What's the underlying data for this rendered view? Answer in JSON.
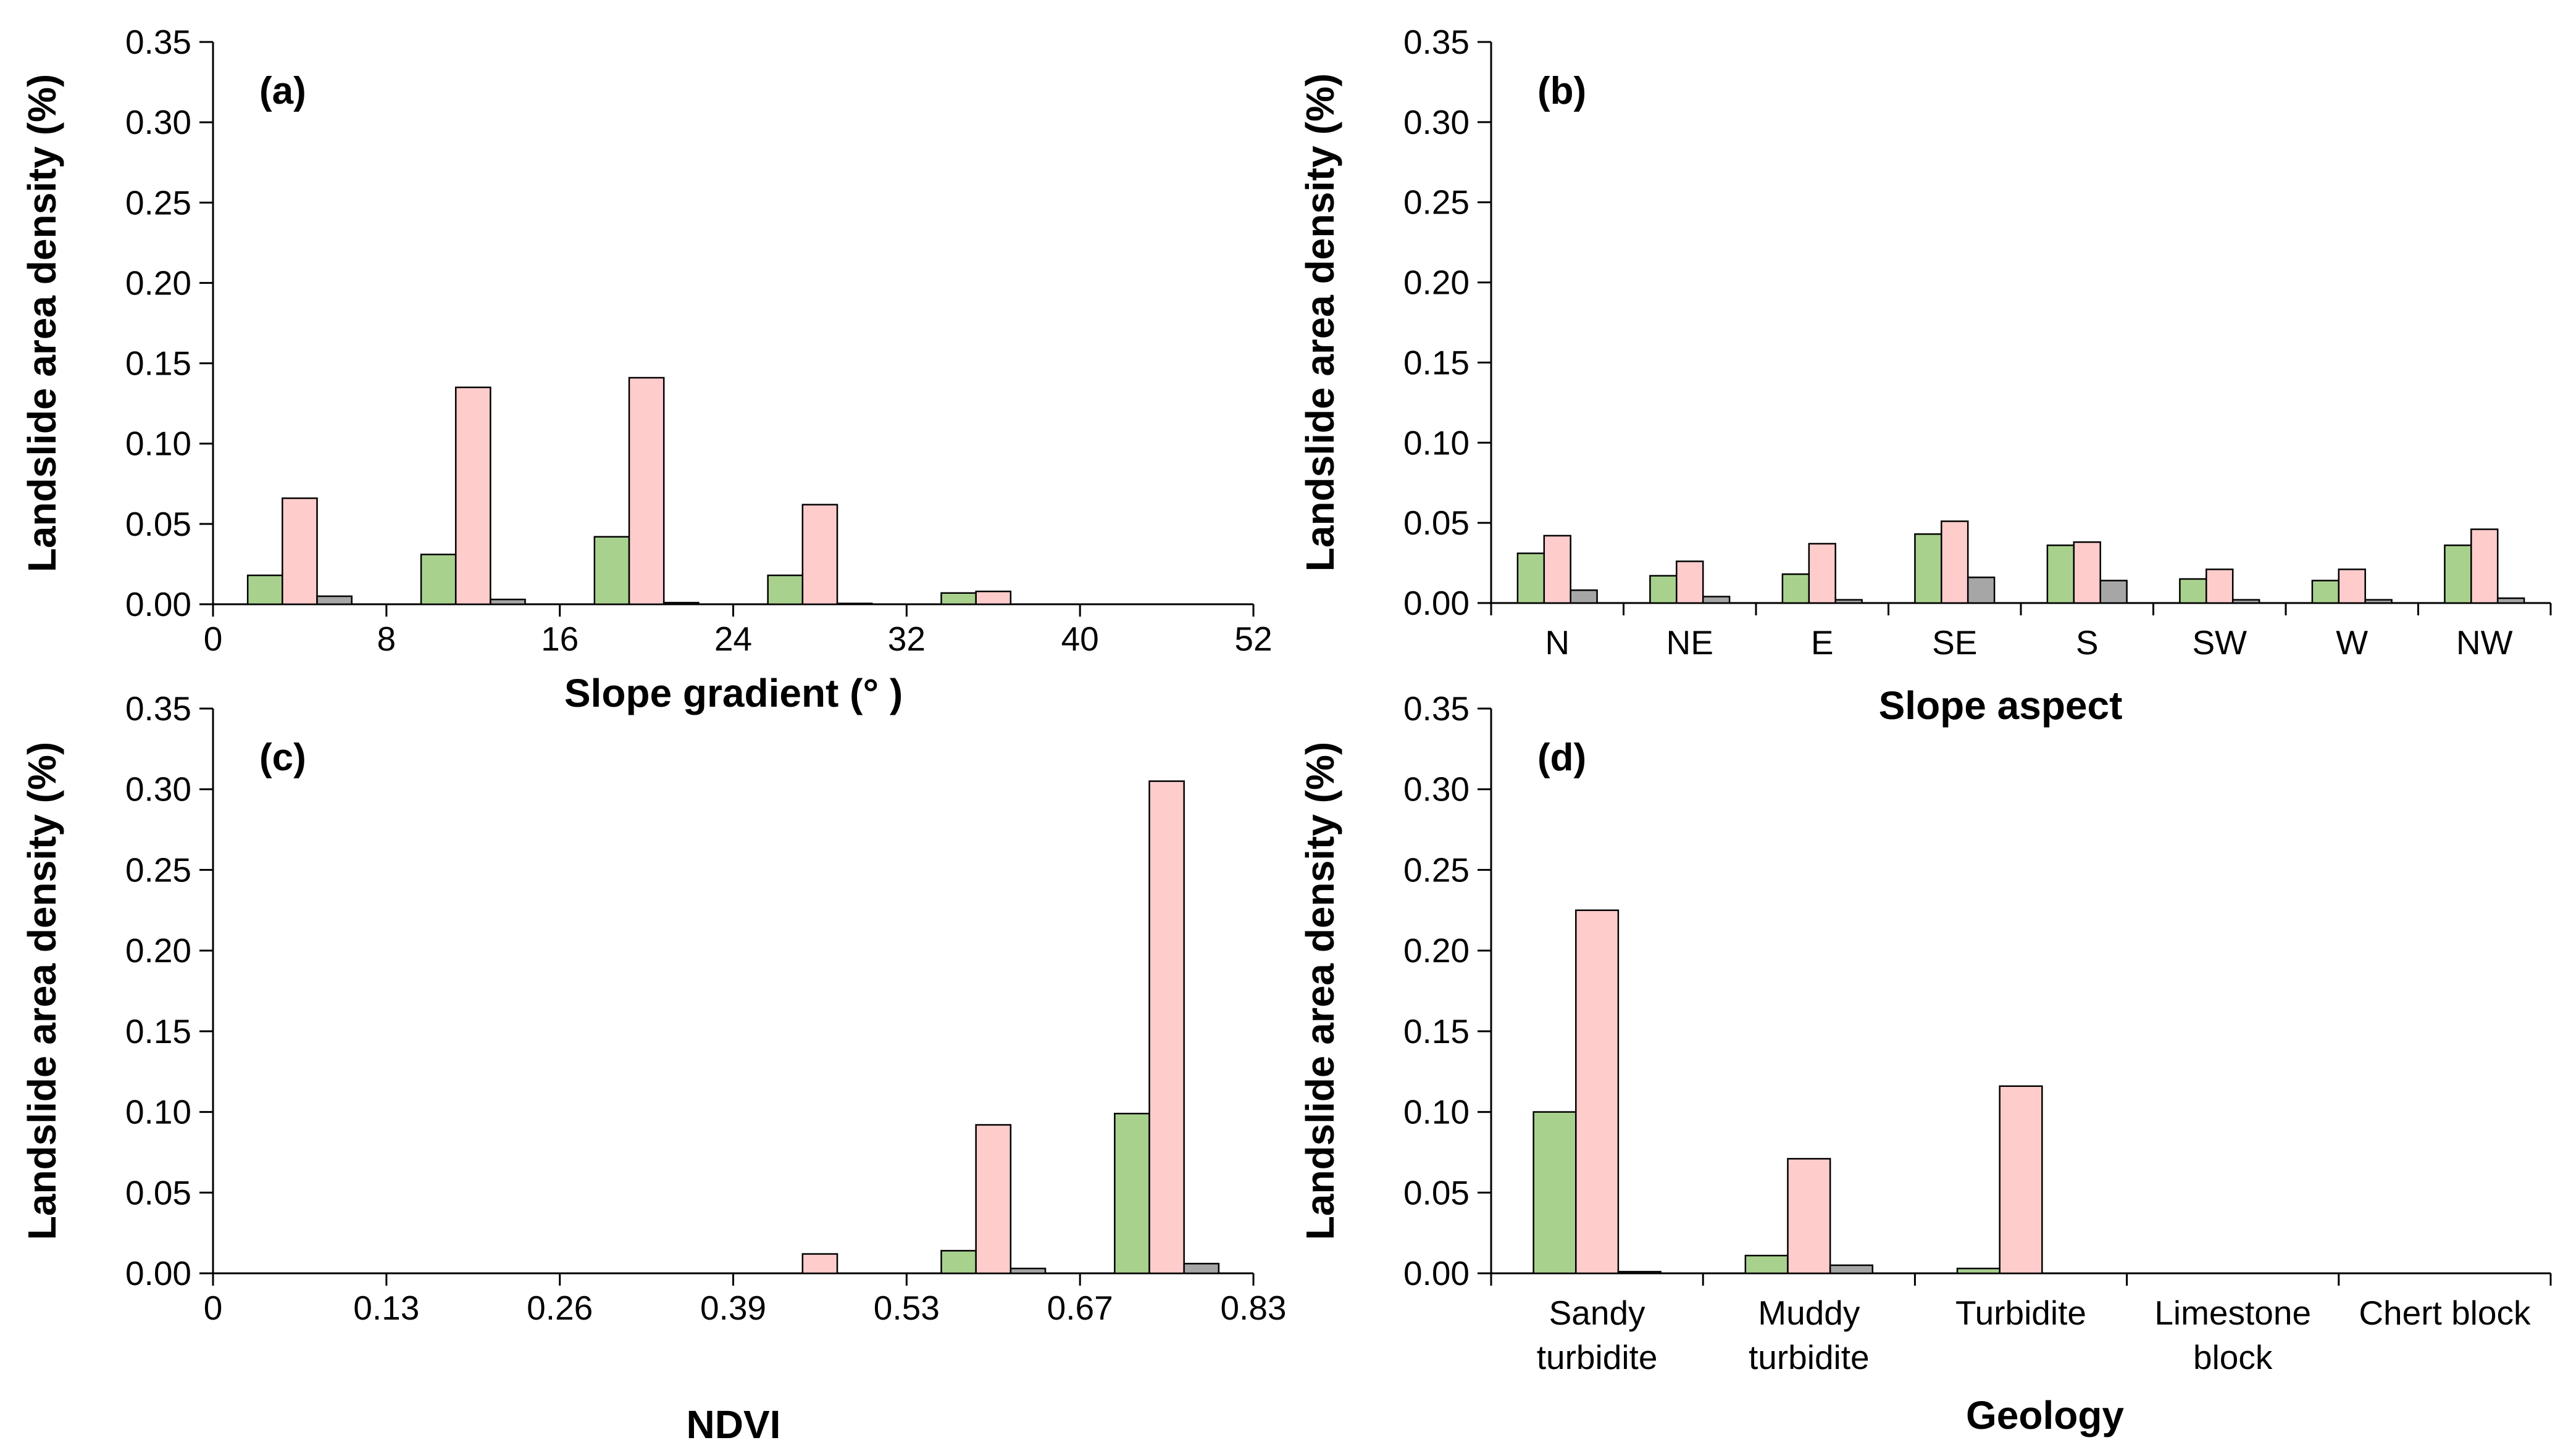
{
  "colors": {
    "series_1": "#a9d18e",
    "series_2": "#ffcccc",
    "series_3": "#a6a6a6",
    "axis": "#000000"
  },
  "chart_data": [
    {
      "id": "a",
      "type": "bar",
      "panel_label": "(a)",
      "xlabel": "Slope gradient (°  )",
      "ylabel": "Landslide area density (%)",
      "ylim": [
        0,
        0.35
      ],
      "yticks": [
        "0.00",
        "0.05",
        "0.10",
        "0.15",
        "0.20",
        "0.25",
        "0.30",
        "0.35"
      ],
      "xticks": [
        "0",
        "8",
        "16",
        "24",
        "32",
        "40",
        "52"
      ],
      "x_tick_style": "edges",
      "grid": false,
      "categories": [
        "0-8",
        "8-16",
        "16-24",
        "24-32",
        "32-40",
        "40-52"
      ],
      "series": [
        {
          "values": [
            0.018,
            0.031,
            0.042,
            0.018,
            0.007,
            0.0
          ]
        },
        {
          "values": [
            0.066,
            0.135,
            0.141,
            0.062,
            0.008,
            0.0
          ]
        },
        {
          "values": [
            0.005,
            0.003,
            0.001,
            0.0005,
            0.0,
            0.0
          ]
        }
      ]
    },
    {
      "id": "b",
      "type": "bar",
      "panel_label": "(b)",
      "xlabel": "Slope aspect",
      "ylabel": "Landslide area density (%)",
      "ylim": [
        0,
        0.35
      ],
      "yticks": [
        "0.00",
        "0.05",
        "0.10",
        "0.15",
        "0.20",
        "0.25",
        "0.30",
        "0.35"
      ],
      "x_tick_style": "centered",
      "grid": false,
      "categories": [
        "N",
        "NE",
        "E",
        "SE",
        "S",
        "SW",
        "W",
        "NW"
      ],
      "series": [
        {
          "values": [
            0.031,
            0.017,
            0.018,
            0.043,
            0.036,
            0.015,
            0.014,
            0.036
          ]
        },
        {
          "values": [
            0.042,
            0.026,
            0.037,
            0.051,
            0.038,
            0.021,
            0.021,
            0.046
          ]
        },
        {
          "values": [
            0.008,
            0.004,
            0.002,
            0.016,
            0.014,
            0.002,
            0.002,
            0.003
          ]
        }
      ]
    },
    {
      "id": "c",
      "type": "bar",
      "panel_label": "(c)",
      "xlabel": "NDVI",
      "ylabel": "Landslide area density (%)",
      "ylim": [
        0,
        0.35
      ],
      "yticks": [
        "0.00",
        "0.05",
        "0.10",
        "0.15",
        "0.20",
        "0.25",
        "0.30",
        "0.35"
      ],
      "xticks": [
        "0",
        "0.13",
        "0.26",
        "0.39",
        "0.53",
        "0.67",
        "0.83"
      ],
      "x_tick_style": "edges",
      "grid": false,
      "categories": [
        "0-0.13",
        "0.13-0.26",
        "0.26-0.39",
        "0.39-0.53",
        "0.53-0.67",
        "0.67-0.83"
      ],
      "series": [
        {
          "values": [
            0.0,
            0.0,
            0.0,
            0.0,
            0.014,
            0.099
          ]
        },
        {
          "values": [
            0.0,
            0.0,
            0.0,
            0.012,
            0.092,
            0.305
          ]
        },
        {
          "values": [
            0.0,
            0.0,
            0.0,
            0.0,
            0.003,
            0.006
          ]
        }
      ]
    },
    {
      "id": "d",
      "type": "bar",
      "panel_label": "(d)",
      "xlabel": "Geology",
      "ylabel": "Landslide area density (%)",
      "ylim": [
        0,
        0.35
      ],
      "yticks": [
        "0.00",
        "0.05",
        "0.10",
        "0.15",
        "0.20",
        "0.25",
        "0.30",
        "0.35"
      ],
      "x_tick_style": "centered",
      "grid": false,
      "categories": [
        "Sandy\nturbidite",
        "Muddy\nturbidite",
        "Turbidite",
        "Limestone\nblock",
        "Chert block"
      ],
      "series": [
        {
          "values": [
            0.1,
            0.011,
            0.003,
            0.0,
            0.0
          ]
        },
        {
          "values": [
            0.225,
            0.071,
            0.116,
            0.0,
            0.0
          ]
        },
        {
          "values": [
            0.001,
            0.005,
            0.0,
            0.0,
            0.0
          ]
        }
      ]
    }
  ]
}
